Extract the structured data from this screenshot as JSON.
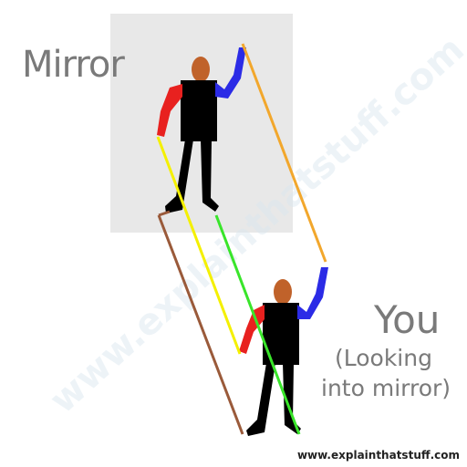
{
  "labels": {
    "mirror": "Mirror",
    "you": "You",
    "you_sub_line1": "(Looking",
    "you_sub_line2": "into mirror)",
    "credit": "www.explainthatstuff.com",
    "watermark": "www.explainthatstuff.com"
  },
  "colors": {
    "mirror_panel": "#e8e8e8",
    "label_gray": "#7a7a7a",
    "body_black": "#000000",
    "head_brown": "#c0622a",
    "left_arm_red": "#e8211f",
    "right_arm_blue": "#2b2be6",
    "line_orange": "#f2a72c",
    "line_yellow": "#f4f000",
    "line_green": "#39e52a",
    "line_brown": "#9a5a3a"
  }
}
